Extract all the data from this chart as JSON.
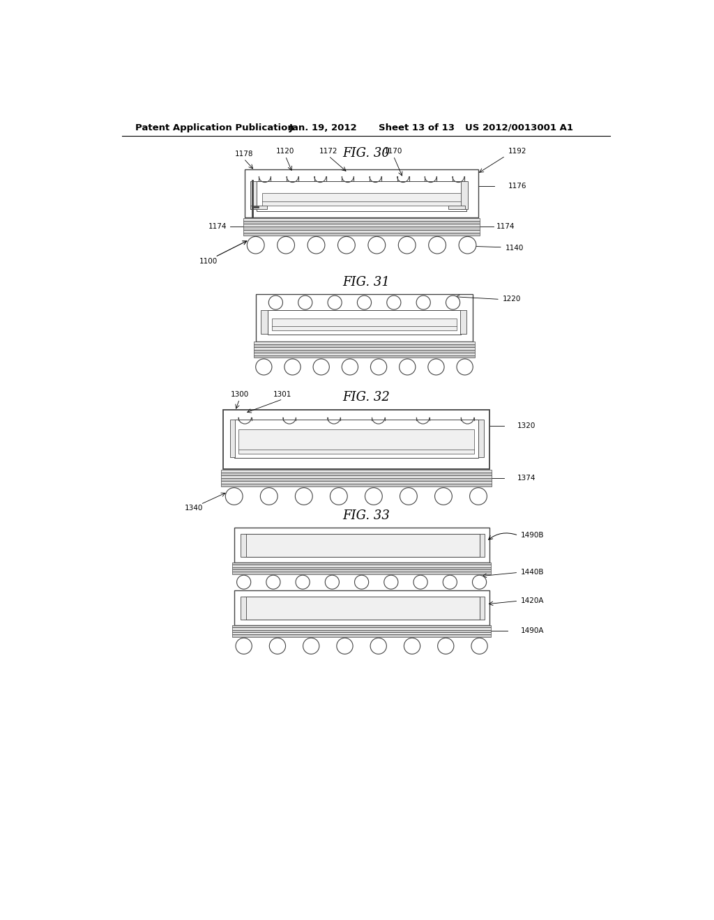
{
  "bg_color": "#ffffff",
  "header_text": "Patent Application Publication",
  "header_date": "Jan. 19, 2012",
  "header_sheet": "Sheet 13 of 13",
  "header_patent": "US 2012/0013001 A1",
  "fig30_title": "FIG. 30",
  "fig31_title": "FIG. 31",
  "fig32_title": "FIG. 32",
  "fig33_title": "FIG. 33",
  "line_color": "#444444",
  "fill_white": "#ffffff",
  "fill_light": "#f0f0f0",
  "fill_gray": "#d0d0d0",
  "fill_stripe1": "#c8c8c8",
  "fill_stripe2": "#e4e4e4"
}
